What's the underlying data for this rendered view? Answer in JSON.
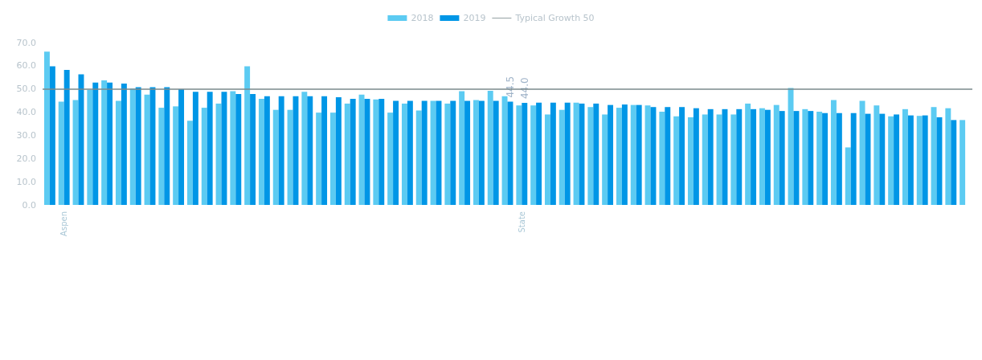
{
  "chart_data": {
    "type": "bar",
    "categories": [
      null,
      "Aspen",
      null,
      null,
      null,
      null,
      null,
      null,
      null,
      null,
      null,
      null,
      null,
      null,
      null,
      null,
      null,
      null,
      null,
      null,
      null,
      null,
      null,
      null,
      null,
      null,
      null,
      null,
      null,
      null,
      null,
      null,
      null,
      "State",
      null,
      null,
      null,
      null,
      null,
      null,
      null,
      null,
      null,
      null,
      null,
      null,
      null,
      null,
      null,
      null,
      null,
      null,
      null,
      null,
      null,
      null,
      null,
      null,
      null,
      null,
      null,
      null,
      null,
      null,
      null
    ],
    "series": [
      {
        "name": "2018",
        "color": "#5ccbf2",
        "values": [
          66.1,
          44.5,
          45.2,
          49.6,
          53.7,
          44.9,
          50.2,
          47.6,
          41.9,
          42.5,
          36.3,
          41.9,
          43.7,
          49.0,
          59.8,
          45.7,
          41.0,
          41.0,
          48.8,
          39.8,
          39.8,
          43.7,
          47.6,
          45.5,
          39.8,
          43.7,
          40.7,
          44.9,
          43.7,
          49.0,
          45.2,
          49.2,
          46.9,
          42.9,
          42.9,
          39.0,
          41.0,
          44.1,
          42.2,
          39.0,
          41.9,
          43.1,
          42.9,
          40.2,
          38.2,
          37.8,
          39.0,
          39.0,
          39.0,
          43.7,
          41.7,
          43.1,
          50.4,
          41.3,
          40.2,
          45.2,
          24.8,
          44.9,
          42.9,
          38.2,
          41.3,
          38.4,
          42.2,
          41.7,
          36.6
        ]
      },
      {
        "name": "2019",
        "color": "#0096e6",
        "values": [
          59.8,
          58.2,
          56.3,
          52.8,
          52.8,
          52.3,
          50.8,
          50.8,
          50.8,
          49.9,
          48.8,
          48.8,
          48.8,
          47.8,
          47.8,
          46.9,
          46.9,
          46.9,
          46.9,
          46.9,
          46.4,
          45.7,
          45.7,
          45.7,
          44.9,
          44.9,
          44.9,
          44.9,
          44.9,
          44.9,
          44.9,
          44.9,
          44.5,
          44.0,
          44.1,
          44.1,
          44.1,
          43.7,
          43.7,
          43.1,
          43.3,
          43.1,
          42.2,
          42.2,
          42.2,
          41.7,
          41.3,
          41.3,
          41.3,
          41.3,
          41.0,
          40.5,
          40.5,
          40.5,
          39.6,
          39.6,
          39.6,
          39.3,
          39.3,
          39.0,
          38.6,
          38.6,
          37.8,
          36.6,
          null
        ],
        "value_labels": [
          null,
          null,
          null,
          null,
          null,
          null,
          null,
          null,
          null,
          null,
          null,
          null,
          null,
          null,
          null,
          null,
          null,
          null,
          null,
          null,
          null,
          null,
          null,
          null,
          null,
          null,
          null,
          null,
          null,
          null,
          null,
          null,
          "44.5",
          "44.0",
          null,
          null,
          null,
          null,
          null,
          null,
          null,
          null,
          null,
          null,
          null,
          null,
          null,
          null,
          null,
          null,
          null,
          null,
          null,
          null,
          null,
          null,
          null,
          null,
          null,
          null,
          null,
          null,
          null,
          null,
          null
        ]
      }
    ],
    "ylim": [
      0,
      70
    ],
    "yticks": [
      {
        "value": 0,
        "label": "0.0"
      },
      {
        "value": 10,
        "label": "10.0"
      },
      {
        "value": 20,
        "label": "20.0"
      },
      {
        "value": 30,
        "label": "30.0"
      },
      {
        "value": 40,
        "label": "40.0"
      },
      {
        "value": 50,
        "label": "50.0"
      },
      {
        "value": 60,
        "label": "60.0"
      },
      {
        "value": 70,
        "label": "70.0"
      }
    ],
    "ref_lines": [
      {
        "axis": "y",
        "value": 50,
        "label": "Typical Growth 50",
        "color": "#7a8a8c"
      }
    ],
    "grid": false,
    "legend": "top"
  }
}
